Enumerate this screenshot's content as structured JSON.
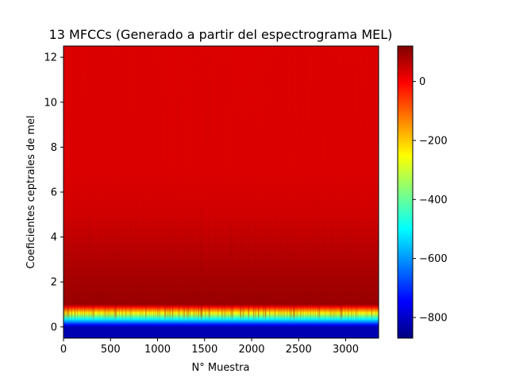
{
  "chart_data": {
    "type": "heatmap",
    "title": "13 MFCCs (Generado a partir del espectrograma MEL)",
    "xlabel": "N° Muestra",
    "ylabel": "Coeficientes ceptrales de mel",
    "xlim": [
      0,
      3350
    ],
    "ylim": [
      -0.5,
      12.5
    ],
    "x_ticks": [
      0,
      500,
      1000,
      1500,
      2000,
      2500,
      3000
    ],
    "y_ticks": [
      0,
      2,
      4,
      6,
      8,
      10,
      12
    ],
    "colormap": "jet",
    "colorbar": {
      "range": [
        -870,
        120
      ],
      "ticks": [
        0,
        -200,
        -400,
        -600,
        -800
      ],
      "tick_labels": [
        "0",
        "−200",
        "−400",
        "−600",
        "−800"
      ]
    },
    "coefficient_rows": [
      {
        "coef": 0,
        "approx_value": -820
      },
      {
        "coef": 1,
        "approx_value": 95
      },
      {
        "coef": 2,
        "approx_value": 85
      },
      {
        "coef": 3,
        "approx_value": 70
      },
      {
        "coef": 4,
        "approx_value": 55
      },
      {
        "coef": 5,
        "approx_value": 40
      },
      {
        "coef": 6,
        "approx_value": 35
      },
      {
        "coef": 7,
        "approx_value": 30
      },
      {
        "coef": 8,
        "approx_value": 30
      },
      {
        "coef": 9,
        "approx_value": 30
      },
      {
        "coef": 10,
        "approx_value": 30
      },
      {
        "coef": 11,
        "approx_value": 30
      },
      {
        "coef": 12,
        "approx_value": 30
      }
    ],
    "grid": false
  }
}
